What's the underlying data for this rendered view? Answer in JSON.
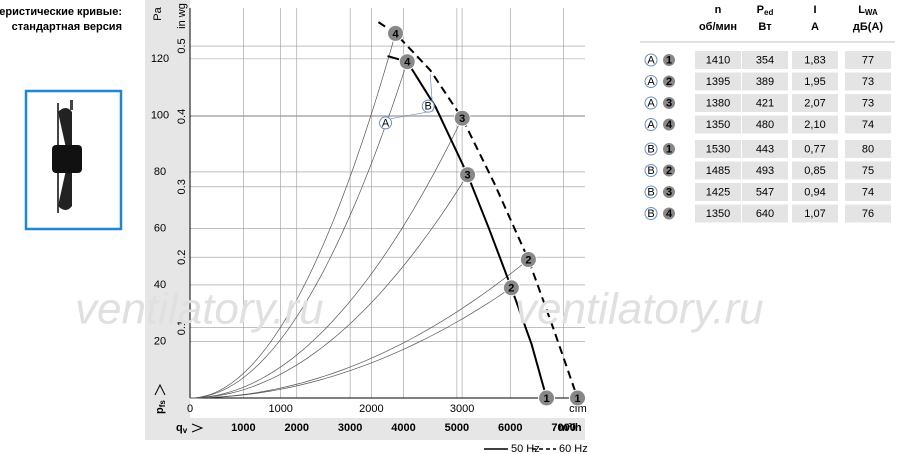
{
  "header": {
    "title": "Характеристические кривые: стандартная версия"
  },
  "watermarks": [
    "ventilatory.ru",
    "ventilatory.ru"
  ],
  "chart_data": {
    "type": "line",
    "xlabel": "m³/h",
    "x2label": "cfm",
    "ylabel": "Pa",
    "y2label": "in wg",
    "y_symbol": {
      "main": "p",
      "sub": "fs"
    },
    "x_symbol": {
      "main": "q",
      "sub": "v"
    },
    "xlim": [
      0,
      7400
    ],
    "xticks": [
      1000,
      2000,
      3000,
      4000,
      5000,
      6000,
      7000
    ],
    "x2lim": [
      0,
      4355
    ],
    "x2ticks": [
      0,
      1000,
      2000,
      3000
    ],
    "ylim": [
      0,
      138
    ],
    "yticks": [
      20,
      40,
      60,
      80,
      100,
      120
    ],
    "y2lim": [
      0,
      0.554
    ],
    "y2ticks": [
      0.1,
      0.2,
      0.3,
      0.4,
      0.5
    ],
    "grid": true,
    "series": [
      {
        "name": "50 Hz",
        "curve_label": "A",
        "color": "#000000",
        "dash": false,
        "x": [
          3700,
          4070,
          4600,
          5200,
          5600,
          6020,
          6400,
          6680
        ],
        "values": [
          121,
          119,
          103,
          79,
          60,
          39,
          19,
          0
        ],
        "points": {
          "labels": [
            "1",
            "2",
            "3",
            "4"
          ],
          "x": [
            6680,
            6020,
            5200,
            4070
          ],
          "values": [
            0,
            39,
            79,
            119
          ]
        }
      },
      {
        "name": "60 Hz",
        "curve_label": "B",
        "color": "#000000",
        "dash": true,
        "x": [
          3530,
          3850,
          4500,
          5100,
          5700,
          6340,
          6800,
          7260
        ],
        "values": [
          133,
          129,
          116,
          99,
          76,
          49,
          25,
          0
        ],
        "points": {
          "labels": [
            "1",
            "2",
            "3",
            "4"
          ],
          "x": [
            7260,
            6340,
            5100,
            3850
          ],
          "values": [
            0,
            49,
            99,
            129
          ]
        }
      }
    ]
  },
  "table": {
    "header": [
      {
        "main": "n",
        "unit": "об/мин"
      },
      {
        "main": "P",
        "sub": "ed",
        "unit": "Вт"
      },
      {
        "main": "I",
        "unit": "A"
      },
      {
        "main": "L",
        "sub": "WA",
        "unit": "дБ(A)"
      }
    ],
    "rows": [
      [
        "A",
        "1",
        "1410",
        "354",
        "1,83",
        "77"
      ],
      [
        "A",
        "2",
        "1395",
        "389",
        "1,95",
        "73"
      ],
      [
        "A",
        "3",
        "1380",
        "421",
        "2,07",
        "73"
      ],
      [
        "A",
        "4",
        "1350",
        "480",
        "2,10",
        "74"
      ],
      [
        "B",
        "1",
        "1530",
        "443",
        "0,77",
        "80"
      ],
      [
        "B",
        "2",
        "1485",
        "493",
        "0,85",
        "75"
      ],
      [
        "B",
        "3",
        "1425",
        "547",
        "0,94",
        "74"
      ],
      [
        "B",
        "4",
        "1350",
        "640",
        "1,07",
        "76"
      ]
    ]
  }
}
